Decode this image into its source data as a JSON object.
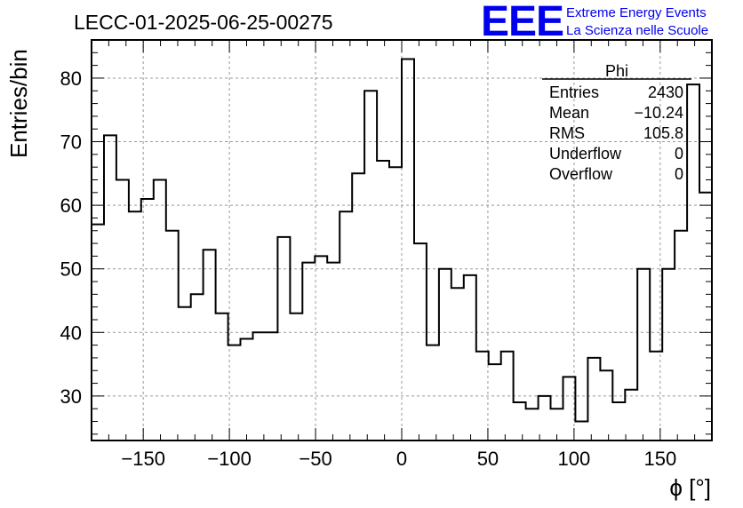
{
  "chart_data": {
    "type": "histogram",
    "title": "LECC-01-2025-06-25-00275",
    "xlabel": "ϕ [°]",
    "ylabel": "Entries/bin",
    "xlim": [
      -180,
      180
    ],
    "ylim": [
      23,
      86
    ],
    "grid": true,
    "bin_width": 7.2,
    "bin_edges_start": -180,
    "values": [
      57,
      71,
      64,
      59,
      61,
      64,
      56,
      44,
      46,
      53,
      43,
      38,
      39,
      40,
      40,
      55,
      43,
      51,
      52,
      51,
      59,
      65,
      78,
      67,
      66,
      83,
      54,
      38,
      50,
      47,
      49,
      37,
      35,
      37,
      29,
      28,
      30,
      28,
      33,
      26,
      36,
      34,
      29,
      31,
      50,
      37,
      50,
      56,
      79,
      62
    ],
    "xticks": [
      "−150",
      "−100",
      "−50",
      "0",
      "50",
      "100",
      "150"
    ],
    "xtick_values": [
      -150,
      -100,
      -50,
      0,
      50,
      100,
      150
    ],
    "yticks": [
      "30",
      "40",
      "50",
      "60",
      "70",
      "80"
    ],
    "ytick_values": [
      30,
      40,
      50,
      60,
      70,
      80
    ],
    "stats": {
      "name": "Phi",
      "rows": [
        {
          "label": "Entries",
          "value": "2430"
        },
        {
          "label": "Mean",
          "value": "−10.24"
        },
        {
          "label": "RMS",
          "value": "105.8"
        },
        {
          "label": "Underflow",
          "value": "0"
        },
        {
          "label": "Overflow",
          "value": "0"
        }
      ]
    }
  },
  "logo": {
    "text": "EEE",
    "line1": "Extreme Energy Events",
    "line2": "La Scienza nelle Scuole",
    "color": "#0000ee"
  }
}
